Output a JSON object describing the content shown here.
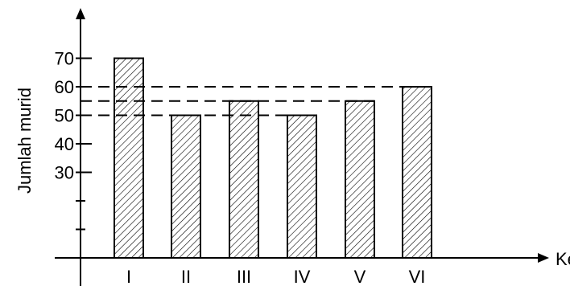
{
  "header": {
    "cropped_text": ""
  },
  "chart_data": {
    "type": "bar",
    "title": "",
    "xlabel": "Kelas",
    "ylabel": "Jumlah murid",
    "categories": [
      "I",
      "II",
      "III",
      "IV",
      "V",
      "VI"
    ],
    "values": [
      70,
      50,
      55,
      50,
      55,
      60
    ],
    "y_ticks": [
      30,
      40,
      50,
      60,
      70
    ],
    "y_unlabeled_ticks": [
      10,
      20
    ],
    "reference_lines": [
      60,
      55,
      50
    ],
    "bar_fill": "diagonal-hatch",
    "colors": {
      "ink": "#000000",
      "background": "#ffffff"
    },
    "grid": false,
    "legend": "none"
  }
}
